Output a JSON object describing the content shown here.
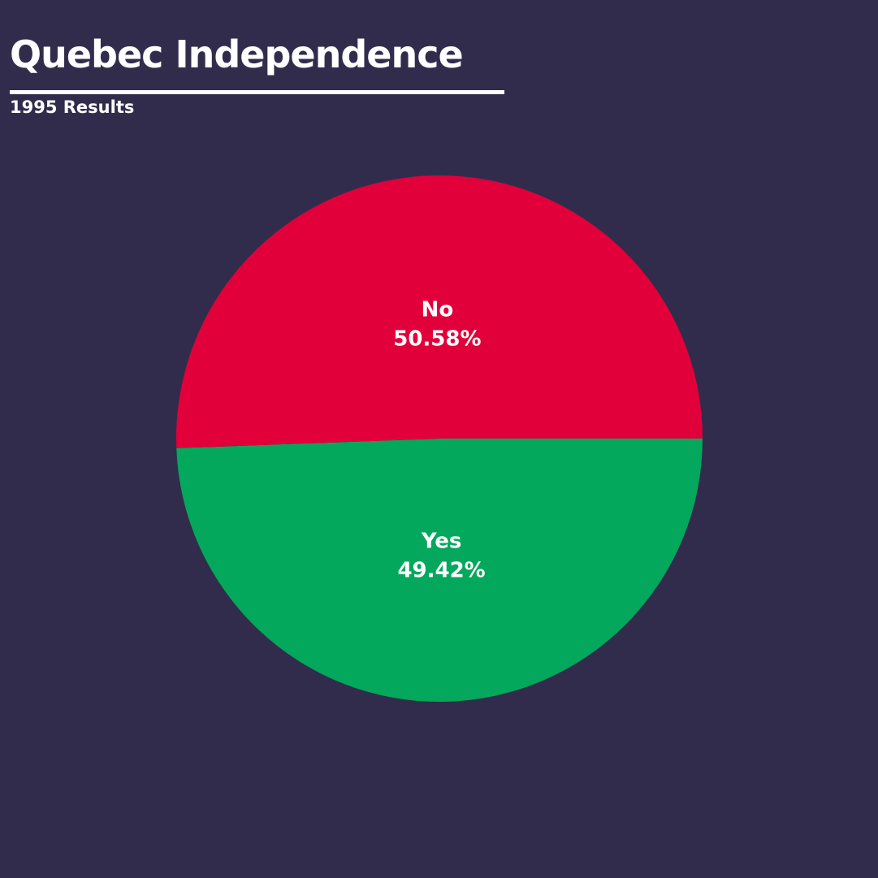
{
  "chart_data": {
    "type": "pie",
    "title": "Quebec Independence",
    "subtitle": "1995 Results",
    "slices": [
      {
        "label": "Yes",
        "value": 49.42,
        "display": "49.42%",
        "color": "#03a85c"
      },
      {
        "label": "No",
        "value": 50.58,
        "display": "50.58%",
        "color": "#e2003b"
      }
    ],
    "start_angle_deg": 0,
    "direction": "clockwise",
    "legend": "none"
  }
}
